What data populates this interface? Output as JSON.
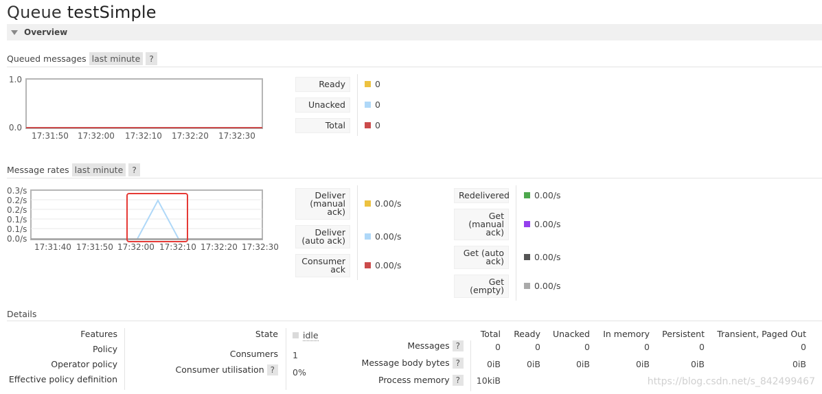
{
  "header": {
    "title_prefix": "Queue",
    "queue_name": "testSimple"
  },
  "overview": {
    "label": "Overview"
  },
  "queued": {
    "label": "Queued messages",
    "range": "last minute",
    "help": "?",
    "y_ticks": [
      "1.0",
      "0.0"
    ],
    "x_ticks": [
      "17:31:50",
      "17:32:00",
      "17:32:10",
      "17:32:20",
      "17:32:30"
    ],
    "legend": [
      {
        "label": "Ready",
        "value": "0",
        "color": "#edc240"
      },
      {
        "label": "Unacked",
        "value": "0",
        "color": "#afd8f8"
      },
      {
        "label": "Total",
        "value": "0",
        "color": "#cb4b4b"
      }
    ]
  },
  "rates": {
    "label": "Message rates",
    "range": "last minute",
    "help": "?",
    "y_ticks": [
      "0.3/s",
      "0.2/s",
      "0.2/s",
      "0.1/s",
      "0.1/s",
      "0.0/s"
    ],
    "x_ticks": [
      "17:31:40",
      "17:31:50",
      "17:32:00",
      "17:32:10",
      "17:32:20",
      "17:32:30"
    ],
    "legend_left": [
      {
        "label": "Deliver (manual ack)",
        "value": "0.00/s",
        "color": "#edc240"
      },
      {
        "label": "Deliver (auto ack)",
        "value": "0.00/s",
        "color": "#afd8f8"
      },
      {
        "label": "Consumer ack",
        "value": "0.00/s",
        "color": "#cb4b4b"
      }
    ],
    "legend_right": [
      {
        "label": "Redelivered",
        "value": "0.00/s",
        "color": "#4da74d"
      },
      {
        "label": "Get (manual ack)",
        "value": "0.00/s",
        "color": "#9440ed"
      },
      {
        "label": "Get (auto ack)",
        "value": "0.00/s",
        "color": "#555555"
      },
      {
        "label": "Get (empty)",
        "value": "0.00/s",
        "color": "#aaaaaa"
      }
    ]
  },
  "chart_data": [
    {
      "type": "line",
      "ylim": [
        0,
        1
      ],
      "x": [
        "17:31:50",
        "17:32:00",
        "17:32:10",
        "17:32:20",
        "17:32:30"
      ],
      "series": [
        {
          "name": "Ready",
          "values": [
            0,
            0,
            0,
            0,
            0
          ]
        },
        {
          "name": "Unacked",
          "values": [
            0,
            0,
            0,
            0,
            0
          ]
        },
        {
          "name": "Total",
          "values": [
            0,
            0,
            0,
            0,
            0
          ]
        }
      ]
    },
    {
      "type": "line",
      "ylim": [
        0,
        0.3
      ],
      "x": [
        "17:32:00",
        "17:32:05",
        "17:32:10"
      ],
      "series": [
        {
          "name": "Deliver (auto ack)",
          "values": [
            0,
            0.2,
            0
          ]
        }
      ]
    }
  ],
  "details": {
    "label": "Details",
    "left_labels": [
      "Features",
      "Policy",
      "Operator policy",
      "Effective policy definition"
    ],
    "state_label": "State",
    "state_value": "idle",
    "consumers_label": "Consumers",
    "consumers_value": "1",
    "util_label": "Consumer utilisation",
    "util_value": "0%",
    "help": "?",
    "table_headers": [
      "Total",
      "Ready",
      "Unacked",
      "In memory",
      "Persistent",
      "Transient, Paged Out"
    ],
    "rows": [
      {
        "label": "Messages",
        "values": [
          "0",
          "0",
          "0",
          "0",
          "0",
          "0"
        ]
      },
      {
        "label": "Message body bytes",
        "values": [
          "0iB",
          "0iB",
          "0iB",
          "0iB",
          "0iB",
          "0iB"
        ]
      },
      {
        "label": "Process memory",
        "values": [
          "10kiB"
        ]
      }
    ]
  },
  "watermark": "https://blog.csdn.net/s_842499467"
}
